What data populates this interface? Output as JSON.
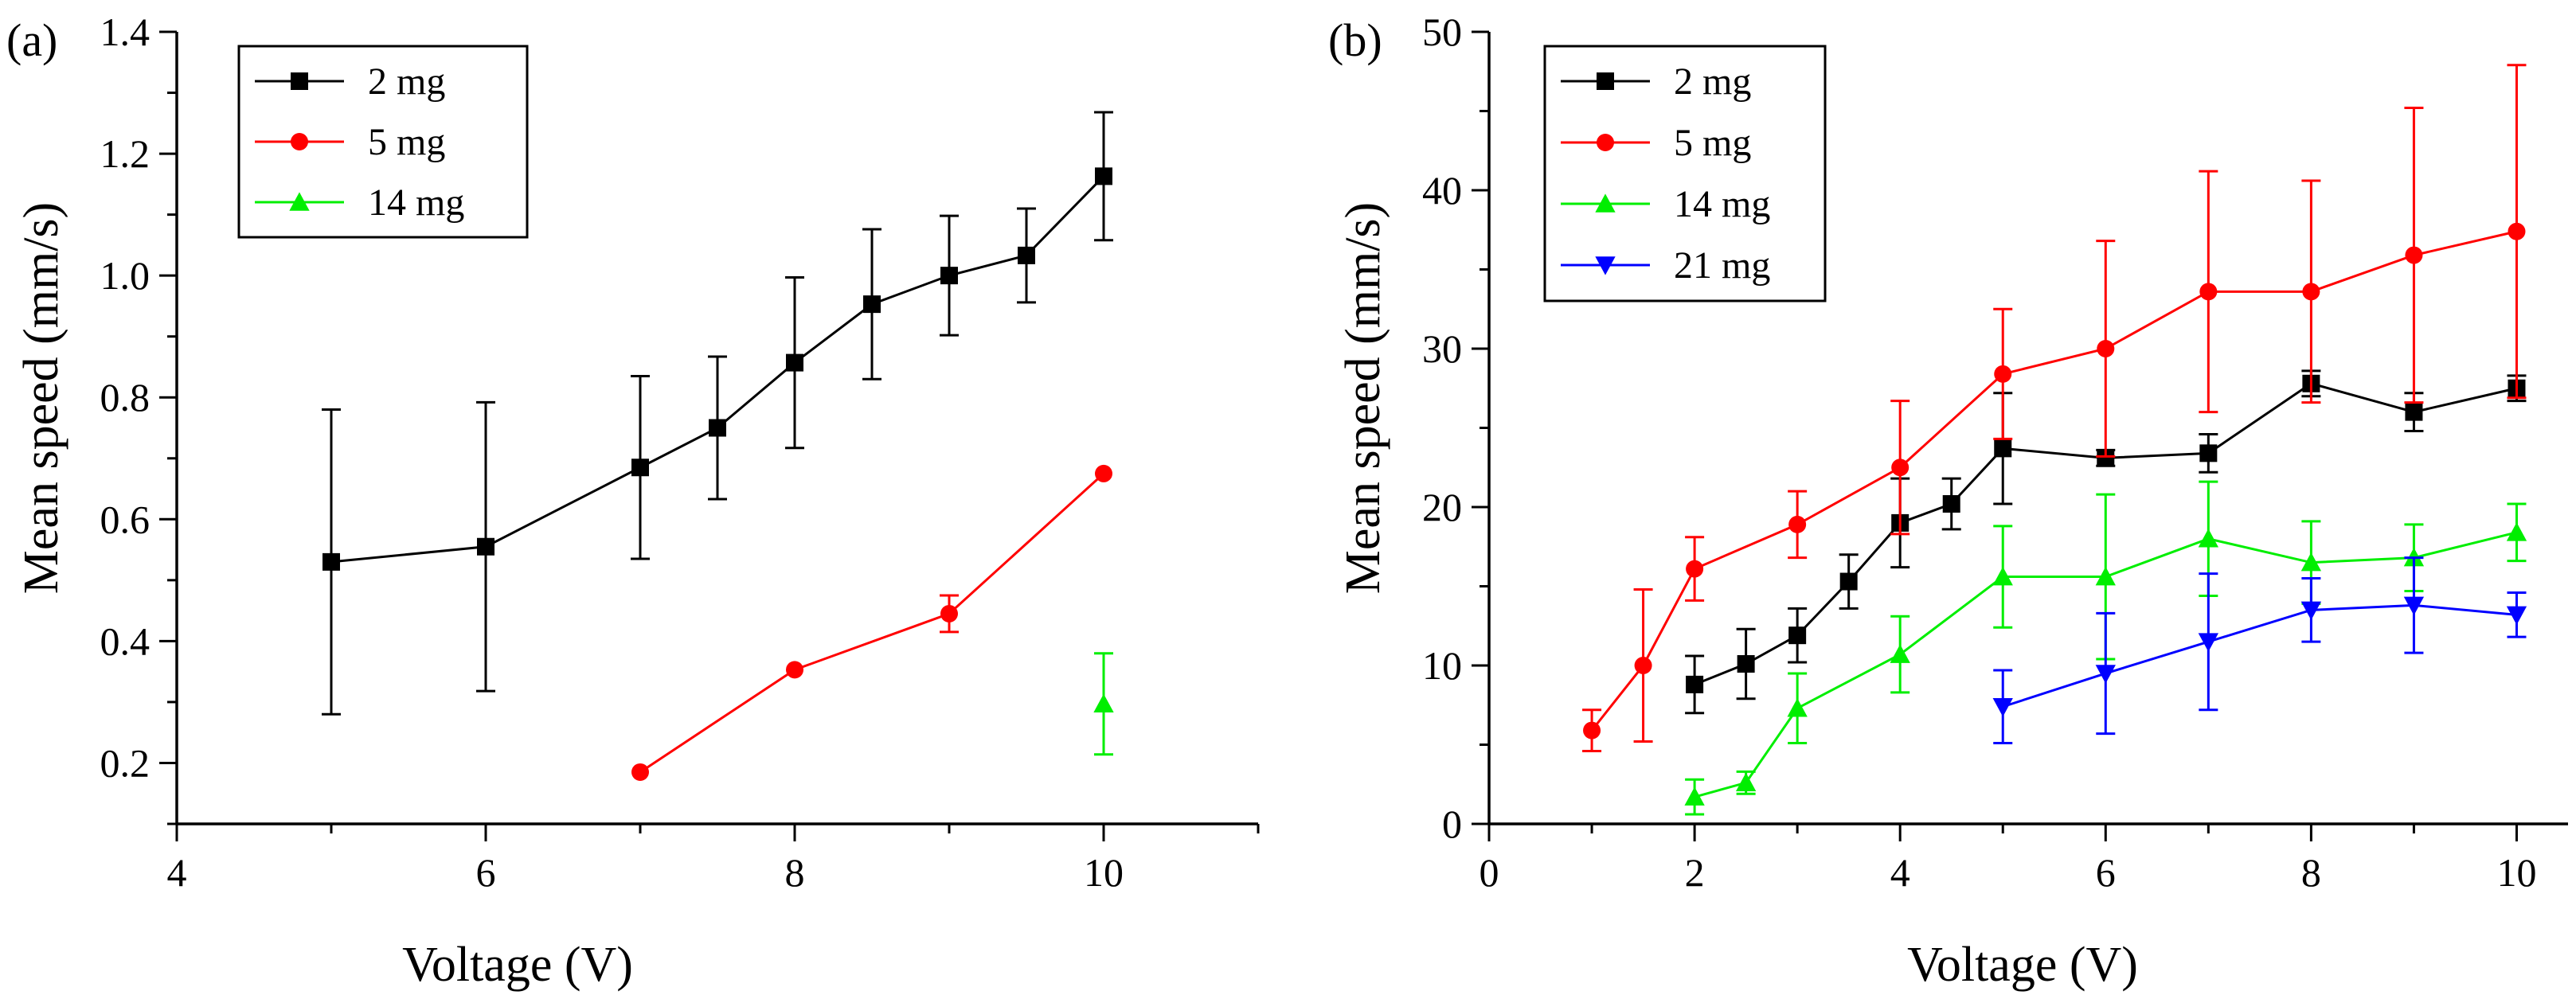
{
  "chart_data": [
    {
      "type": "line",
      "panel_label": "(a)",
      "xlabel": "Voltage (V)",
      "ylabel": "Mean speed (mm/s)",
      "xlim": [
        4,
        11
      ],
      "ylim": [
        0.1,
        1.4
      ],
      "xticks": [
        4,
        6,
        8,
        10
      ],
      "yticks": [
        0.2,
        0.4,
        0.6,
        0.8,
        1.0,
        1.2,
        1.4
      ],
      "ytick_labels": [
        "0.2",
        "0.4",
        "0.6",
        "0.8",
        "1.0",
        "1.2",
        "1.4"
      ],
      "grid": false,
      "legend_position": "top-left",
      "series": [
        {
          "name": "2 mg",
          "color": "#000000",
          "marker": "square",
          "x": [
            5,
            6,
            7,
            7.5,
            8,
            8.5,
            9,
            9.5,
            10
          ],
          "y": [
            0.53,
            0.555,
            0.685,
            0.75,
            0.857,
            0.953,
            1.0,
            1.033,
            1.163
          ],
          "err": [
            0.25,
            0.237,
            0.15,
            0.117,
            0.14,
            0.123,
            0.098,
            0.077,
            0.105
          ]
        },
        {
          "name": "5 mg",
          "color": "#ff0000",
          "marker": "circle",
          "x": [
            7,
            8,
            9,
            10
          ],
          "y": [
            0.185,
            0.353,
            0.445,
            0.675
          ],
          "err": [
            0,
            0,
            0.03,
            0
          ]
        },
        {
          "name": "14 mg",
          "color": "#00ee00",
          "marker": "triangle-up",
          "x": [
            10
          ],
          "y": [
            0.297
          ],
          "err": [
            0.083
          ]
        }
      ]
    },
    {
      "type": "line",
      "panel_label": "(b)",
      "xlabel": "Voltage (V)",
      "ylabel": "Mean speed (mm/s)",
      "xlim": [
        0,
        10.5
      ],
      "ylim": [
        0,
        50
      ],
      "xticks": [
        0,
        2,
        4,
        6,
        8,
        10
      ],
      "yticks": [
        0,
        10,
        20,
        30,
        40,
        50
      ],
      "ytick_labels": [
        "0",
        "10",
        "20",
        "30",
        "40",
        "50"
      ],
      "grid": false,
      "legend_position": "top-left",
      "series": [
        {
          "name": "2 mg",
          "color": "#000000",
          "marker": "square",
          "x": [
            2,
            2.5,
            3,
            3.5,
            4,
            4.5,
            5,
            6,
            7,
            8,
            9,
            10
          ],
          "y": [
            8.8,
            10.1,
            11.9,
            15.3,
            19.0,
            20.2,
            23.7,
            23.1,
            23.4,
            27.8,
            26.0,
            27.5
          ],
          "err": [
            1.8,
            2.2,
            1.7,
            1.7,
            2.8,
            1.6,
            3.5,
            0.5,
            1.2,
            0.8,
            1.2,
            0.8
          ]
        },
        {
          "name": "5 mg",
          "color": "#ff0000",
          "marker": "circle",
          "x": [
            1,
            1.5,
            2,
            3,
            4,
            5,
            6,
            7,
            8,
            9,
            10
          ],
          "y": [
            5.9,
            10.0,
            16.1,
            18.9,
            22.5,
            28.4,
            30.0,
            33.6,
            33.6,
            35.9,
            37.4
          ],
          "err": [
            1.3,
            4.8,
            2.0,
            2.1,
            4.2,
            4.1,
            6.8,
            7.6,
            7.0,
            9.3,
            10.5
          ]
        },
        {
          "name": "14 mg",
          "color": "#00ee00",
          "marker": "triangle-up",
          "x": [
            2,
            2.5,
            3,
            4,
            5,
            6,
            7,
            8,
            9,
            10
          ],
          "y": [
            1.7,
            2.6,
            7.3,
            10.7,
            15.6,
            15.6,
            18.0,
            16.5,
            16.8,
            18.4
          ],
          "err": [
            1.1,
            0.7,
            2.2,
            2.4,
            3.2,
            5.2,
            3.6,
            2.6,
            2.1,
            1.8
          ]
        },
        {
          "name": "21 mg",
          "color": "#0000ff",
          "marker": "triangle-down",
          "x": [
            5,
            6,
            7,
            8,
            9,
            10
          ],
          "y": [
            7.4,
            9.5,
            11.5,
            13.5,
            13.8,
            13.2
          ],
          "err": [
            2.3,
            3.8,
            4.3,
            2.0,
            3.0,
            1.4
          ]
        }
      ]
    }
  ]
}
